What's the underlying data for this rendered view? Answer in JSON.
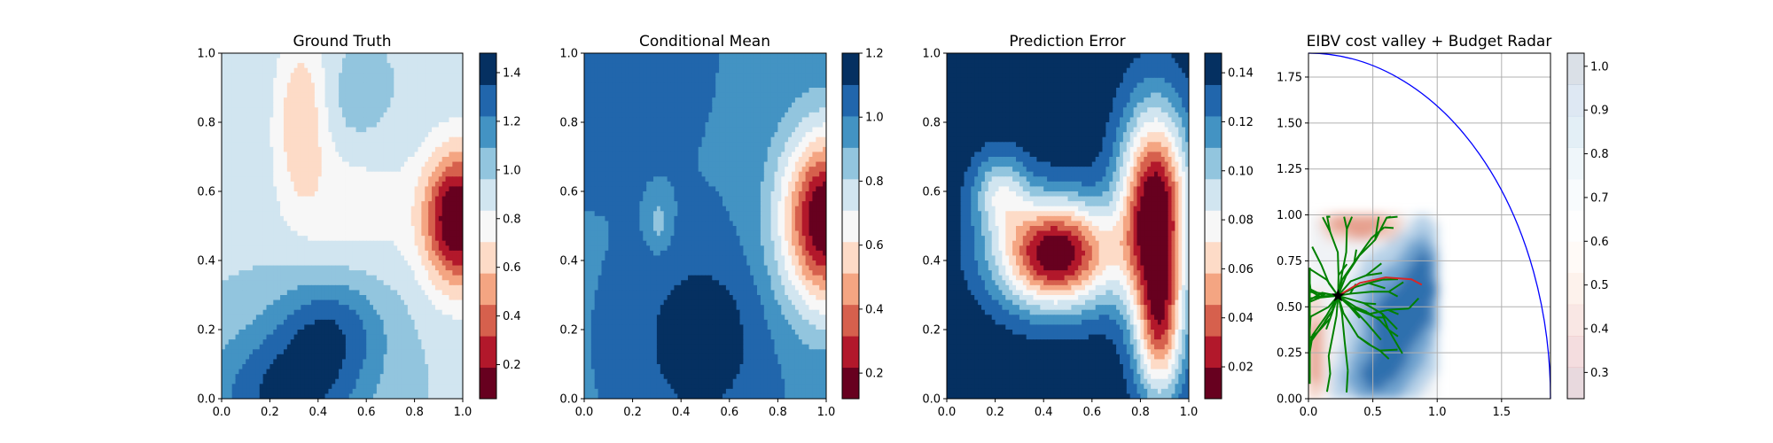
{
  "figure": {
    "panels": [
      {
        "title": "Ground Truth",
        "xticks": [
          "0.0",
          "0.2",
          "0.4",
          "0.6",
          "0.8",
          "1.0"
        ],
        "yticks": [
          "0.0",
          "0.2",
          "0.4",
          "0.6",
          "0.8",
          "1.0"
        ],
        "colorbar_ticks": [
          "0.2",
          "0.4",
          "0.6",
          "0.8",
          "1.0",
          "1.2",
          "1.4"
        ]
      },
      {
        "title": "Conditional Mean",
        "xticks": [
          "0.0",
          "0.2",
          "0.4",
          "0.6",
          "0.8",
          "1.0"
        ],
        "yticks": [
          "0.0",
          "0.2",
          "0.4",
          "0.6",
          "0.8",
          "1.0"
        ],
        "colorbar_ticks": [
          "0.2",
          "0.4",
          "0.6",
          "0.8",
          "1.0",
          "1.2"
        ]
      },
      {
        "title": "Prediction Error",
        "xticks": [
          "0.0",
          "0.2",
          "0.4",
          "0.6",
          "0.8",
          "1.0"
        ],
        "yticks": [
          "0.0",
          "0.2",
          "0.4",
          "0.6",
          "0.8",
          "1.0"
        ],
        "colorbar_ticks": [
          "0.02",
          "0.04",
          "0.06",
          "0.08",
          "0.10",
          "0.12",
          "0.14"
        ]
      },
      {
        "title": "EIBV cost valley + Budget Radar",
        "xticks": [
          "0.0",
          "0.5",
          "1.0",
          "1.5"
        ],
        "yticks": [
          "0.00",
          "0.25",
          "0.50",
          "0.75",
          "1.00",
          "1.25",
          "1.50",
          "1.75"
        ],
        "colorbar_ticks": [
          "0.3",
          "0.4",
          "0.5",
          "0.6",
          "0.7",
          "0.8",
          "0.9",
          "1.0"
        ]
      }
    ]
  },
  "colors": {
    "rdbu": [
      "#67001f",
      "#b2182b",
      "#d6604d",
      "#f4a582",
      "#fddbc7",
      "#f7f7f7",
      "#d1e5f0",
      "#92c5de",
      "#4393c3",
      "#2166ac",
      "#053061"
    ],
    "budget_ellipse": "#0000ff",
    "trajectory_tree": "#008000",
    "planned_path": "#d62728",
    "current_location": "#000000"
  },
  "chart_data": [
    {
      "type": "heatmap",
      "title": "Ground Truth",
      "xlim": [
        0,
        1
      ],
      "ylim": [
        0,
        1
      ],
      "colorbar_range": [
        0.06,
        1.48
      ],
      "colorbar_levels": [
        0.06,
        0.2,
        0.4,
        0.5,
        0.6,
        0.8,
        0.9,
        1.0,
        1.1,
        1.2,
        1.3,
        1.48
      ],
      "colormap": "RdBu",
      "field_features": [
        {
          "feature": "low (red) core",
          "x": 0.95,
          "y": 0.52,
          "value": 0.06
        },
        {
          "feature": "high (dark blue) region",
          "x": 0.25,
          "y": 0.05,
          "value": 1.4
        },
        {
          "feature": "high (dark blue) spot",
          "x": 0.45,
          "y": 0.22,
          "value": 1.4
        },
        {
          "feature": "orange tongue",
          "x": 0.33,
          "y": 0.8,
          "value": 0.6
        }
      ],
      "grid": false
    },
    {
      "type": "heatmap",
      "title": "Conditional Mean",
      "xlim": [
        0,
        1
      ],
      "ylim": [
        0,
        1
      ],
      "colorbar_range": [
        0.12,
        1.2
      ],
      "colorbar_levels": [
        0.12,
        0.2,
        0.3,
        0.4,
        0.5,
        0.6,
        0.7,
        0.8,
        0.9,
        1.0,
        1.1,
        1.2
      ],
      "colormap": "RdBu",
      "field_features": [
        {
          "feature": "low (red) core",
          "x": 0.97,
          "y": 0.52,
          "value": 0.15
        },
        {
          "feature": "high (dark blue) blob",
          "x": 0.48,
          "y": 0.17,
          "value": 1.15
        },
        {
          "feature": "light blue spot",
          "x": 0.31,
          "y": 0.51,
          "value": 0.85
        }
      ],
      "grid": false
    },
    {
      "type": "heatmap",
      "title": "Prediction Error",
      "xlim": [
        0,
        1
      ],
      "ylim": [
        0,
        1
      ],
      "colorbar_range": [
        0.007,
        0.148
      ],
      "colorbar_levels": [
        0.007,
        0.02,
        0.03,
        0.04,
        0.05,
        0.06,
        0.08,
        0.09,
        0.1,
        0.11,
        0.12,
        0.13,
        0.148
      ],
      "colormap": "RdBu",
      "field_features": [
        {
          "feature": "low-error (dark red) band",
          "x": 0.45,
          "y": 0.4,
          "value": 0.01
        },
        {
          "feature": "low-error (dark red) region",
          "x": 0.85,
          "y": 0.55,
          "value": 0.01
        },
        {
          "feature": "high-error (dark blue) corner",
          "x": 0.1,
          "y": 0.95,
          "value": 0.145
        },
        {
          "feature": "high-error (dark blue) corner",
          "x": 0.05,
          "y": 0.05,
          "value": 0.145
        }
      ],
      "grid": false
    },
    {
      "type": "heatmap",
      "title": "EIBV cost valley + Budget Radar",
      "xlim": [
        0,
        1.88
      ],
      "ylim": [
        0,
        1.88
      ],
      "colorbar_range": [
        0.24,
        1.03
      ],
      "colormap": "RdBu",
      "colormap_alpha": 0.15,
      "budget_radius": 1.88,
      "current_location": {
        "x": 0.23,
        "y": 0.56
      },
      "planned_path": [
        [
          0.23,
          0.56
        ],
        [
          0.4,
          0.63
        ],
        [
          0.6,
          0.66
        ],
        [
          0.8,
          0.65
        ],
        [
          0.88,
          0.62
        ]
      ],
      "grid": true
    }
  ]
}
